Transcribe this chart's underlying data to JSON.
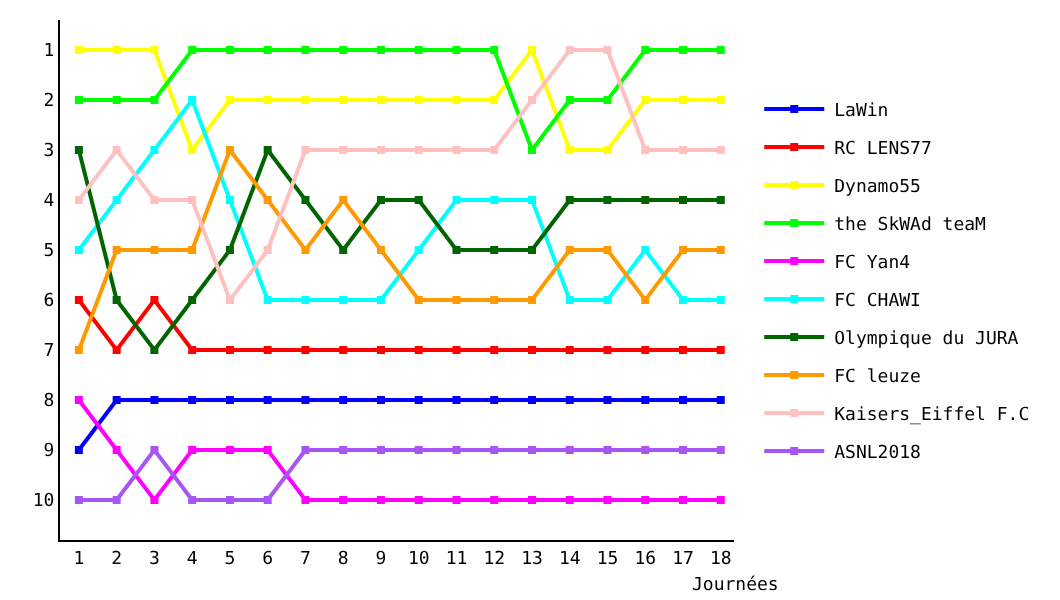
{
  "chart_data": {
    "type": "line",
    "xlabel": "Journées",
    "x": [
      1,
      2,
      3,
      4,
      5,
      6,
      7,
      8,
      9,
      10,
      11,
      12,
      13,
      14,
      15,
      16,
      17,
      18
    ],
    "xlim": [
      0.5,
      18.35
    ],
    "xticks": [
      1,
      2,
      3,
      4,
      5,
      6,
      7,
      8,
      9,
      10,
      11,
      12,
      13,
      14,
      15,
      16,
      17,
      18
    ],
    "ylim": [
      10.8,
      0.4
    ],
    "yticks": [
      1,
      2,
      3,
      4,
      5,
      6,
      7,
      8,
      9,
      10
    ],
    "legend": "right",
    "marker": "square",
    "line_style": "solid",
    "series": [
      {
        "name": "LaWin",
        "color": "#0000ff",
        "values": [
          9,
          8,
          8,
          8,
          8,
          8,
          8,
          8,
          8,
          8,
          8,
          8,
          8,
          8,
          8,
          8,
          8,
          8
        ]
      },
      {
        "name": "RC LENS77",
        "color": "#ff0000",
        "values": [
          6,
          7,
          6,
          7,
          7,
          7,
          7,
          7,
          7,
          7,
          7,
          7,
          7,
          7,
          7,
          7,
          7,
          7
        ]
      },
      {
        "name": "Dynamo55",
        "color": "#ffff00",
        "values": [
          1,
          1,
          1,
          3,
          2,
          2,
          2,
          2,
          2,
          2,
          2,
          2,
          1,
          3,
          3,
          2,
          2,
          2
        ]
      },
      {
        "name": "the SkWAd teaM",
        "color": "#00ff00",
        "values": [
          2,
          2,
          2,
          1,
          1,
          1,
          1,
          1,
          1,
          1,
          1,
          1,
          3,
          2,
          2,
          1,
          1,
          1
        ]
      },
      {
        "name": "FC Yan4",
        "color": "#ff00ff",
        "values": [
          8,
          9,
          10,
          9,
          9,
          9,
          10,
          10,
          10,
          10,
          10,
          10,
          10,
          10,
          10,
          10,
          10,
          10
        ]
      },
      {
        "name": "FC CHAWI",
        "color": "#00ffff",
        "values": [
          5,
          4,
          3,
          2,
          4,
          6,
          6,
          6,
          6,
          5,
          4,
          4,
          4,
          6,
          6,
          5,
          6,
          6
        ]
      },
      {
        "name": "Olympique du JURA",
        "color": "#006400",
        "values": [
          3,
          6,
          7,
          6,
          5,
          3,
          4,
          5,
          4,
          4,
          5,
          5,
          5,
          4,
          4,
          4,
          4,
          4
        ]
      },
      {
        "name": "FC leuze",
        "color": "#ff9900",
        "values": [
          7,
          5,
          5,
          5,
          3,
          4,
          5,
          4,
          5,
          6,
          6,
          6,
          6,
          5,
          5,
          6,
          5,
          5
        ]
      },
      {
        "name": "Kaisers_Eiffel F.C",
        "color": "#ffc0c0",
        "values": [
          4,
          3,
          4,
          4,
          6,
          5,
          3,
          3,
          3,
          3,
          3,
          3,
          2,
          1,
          1,
          3,
          3,
          3
        ]
      },
      {
        "name": "ASNL2018",
        "color": "#a855f7",
        "values": [
          10,
          10,
          9,
          10,
          10,
          10,
          9,
          9,
          9,
          9,
          9,
          9,
          9,
          9,
          9,
          9,
          9,
          9
        ]
      }
    ]
  }
}
